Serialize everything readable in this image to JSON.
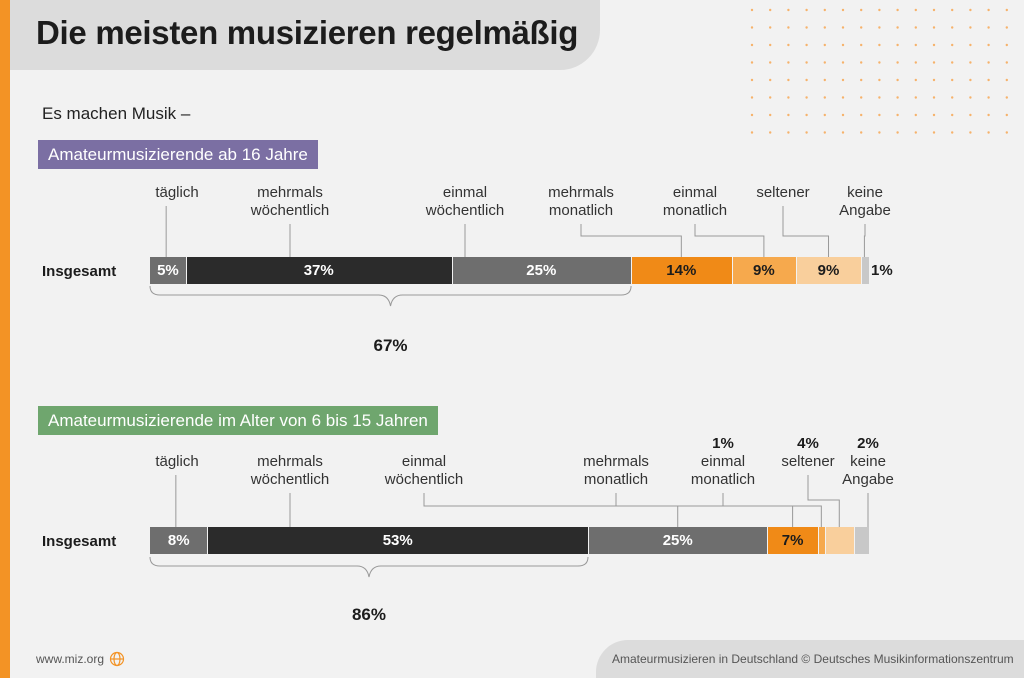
{
  "title": "Die meisten musizieren regelmäßig",
  "intro": "Es machen Musik –",
  "footer": {
    "url": "www.miz.org",
    "source": "Amateurmusizieren in Deutschland  © Deutsches Musikinformationszentrum"
  },
  "colors": {
    "accent": "#f39325",
    "täglich": "#6e6e6e",
    "mehrmals wöchentlich": "#2b2b2b",
    "einmal wöchentlich": "#6e6e6e",
    "mehrmals monatlich": "#f08a17",
    "einmal monatlich": "#f6a94d",
    "seltener": "#f9cf9c",
    "keine Angabe": "#c8c8c8"
  },
  "chart_data": [
    {
      "type": "bar",
      "stacked": true,
      "orientation": "horizontal",
      "group_label": "Amateurmusizierende ab 16 Jahre",
      "row_label": "Insgesamt",
      "categories": [
        "täglich",
        "mehrmals wöchentlich",
        "einmal wöchentlich",
        "mehrmals monatlich",
        "einmal monatlich",
        "seltener",
        "keine Angabe"
      ],
      "category_lines": [
        [
          "täglich"
        ],
        [
          "mehrmals",
          "wöchentlich"
        ],
        [
          "einmal",
          "wöchentlich"
        ],
        [
          "mehrmals",
          "monatlich"
        ],
        [
          "einmal",
          "monatlich"
        ],
        [
          "seltener"
        ],
        [
          "keine",
          "Angabe"
        ]
      ],
      "values": [
        5,
        37,
        25,
        14,
        9,
        9,
        1
      ],
      "value_labels": [
        "5%",
        "37%",
        "25%",
        "14%",
        "9%",
        "9%",
        "1%"
      ],
      "bracket_total": "67%"
    },
    {
      "type": "bar",
      "stacked": true,
      "orientation": "horizontal",
      "group_label": "Amateurmusizierende im Alter von 6 bis 15 Jahren",
      "row_label": "Insgesamt",
      "categories": [
        "täglich",
        "mehrmals wöchentlich",
        "einmal wöchentlich",
        "mehrmals monatlich",
        "einmal monatlich",
        "seltener",
        "keine Angabe"
      ],
      "category_lines": [
        [
          "täglich"
        ],
        [
          "mehrmals",
          "wöchentlich"
        ],
        [
          "einmal",
          "wöchentlich"
        ],
        [
          "mehrmals",
          "monatlich"
        ],
        [
          "einmal",
          "monatlich"
        ],
        [
          "seltener"
        ],
        [
          "keine",
          "Angabe"
        ]
      ],
      "values": [
        8,
        53,
        25,
        7,
        1,
        4,
        2
      ],
      "value_labels": [
        "8%",
        "53%",
        "25%",
        "7%",
        "1%",
        "4%",
        "2%"
      ],
      "bracket_total": "86%"
    }
  ]
}
